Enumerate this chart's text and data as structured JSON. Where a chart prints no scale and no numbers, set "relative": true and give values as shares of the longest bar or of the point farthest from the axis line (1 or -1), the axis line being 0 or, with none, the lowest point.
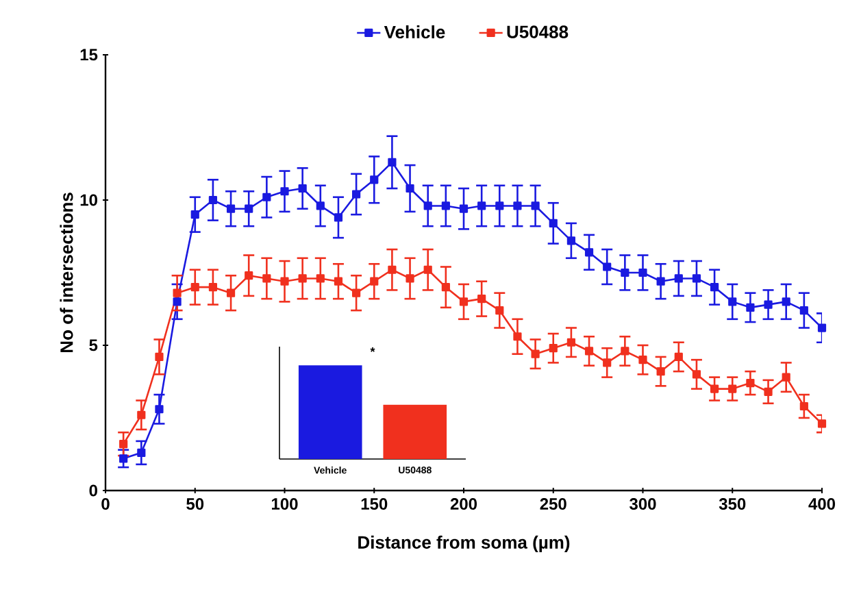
{
  "chart_data": [
    {
      "type": "line",
      "xlabel": "Distance from soma (µm)",
      "ylabel": "No of intersections",
      "x": [
        10,
        20,
        30,
        40,
        50,
        60,
        70,
        80,
        90,
        100,
        110,
        120,
        130,
        140,
        150,
        160,
        170,
        180,
        190,
        200,
        210,
        220,
        230,
        240,
        250,
        260,
        270,
        280,
        290,
        300,
        310,
        320,
        330,
        340,
        350,
        360,
        370,
        380,
        390,
        400
      ],
      "series": [
        {
          "name": "Vehicle",
          "color": "#1a1ae0",
          "values": [
            1.1,
            1.3,
            2.8,
            6.5,
            9.5,
            10.0,
            9.7,
            9.7,
            10.1,
            10.3,
            10.4,
            9.8,
            9.4,
            10.2,
            10.7,
            11.3,
            10.4,
            9.8,
            9.8,
            9.7,
            9.8,
            9.8,
            9.8,
            9.8,
            9.2,
            8.6,
            8.2,
            7.7,
            7.5,
            7.5,
            7.2,
            7.3,
            7.3,
            7.0,
            6.5,
            6.3,
            6.4,
            6.5,
            6.2,
            5.6
          ],
          "errors": [
            0.3,
            0.4,
            0.5,
            0.6,
            0.6,
            0.7,
            0.6,
            0.6,
            0.7,
            0.7,
            0.7,
            0.7,
            0.7,
            0.7,
            0.8,
            0.9,
            0.8,
            0.7,
            0.7,
            0.7,
            0.7,
            0.7,
            0.7,
            0.7,
            0.7,
            0.6,
            0.6,
            0.6,
            0.6,
            0.6,
            0.6,
            0.6,
            0.6,
            0.6,
            0.6,
            0.5,
            0.5,
            0.6,
            0.6,
            0.5
          ]
        },
        {
          "name": "U50488",
          "color": "#f0301e",
          "values": [
            1.6,
            2.6,
            4.6,
            6.8,
            7.0,
            7.0,
            6.8,
            7.4,
            7.3,
            7.2,
            7.3,
            7.3,
            7.2,
            6.8,
            7.2,
            7.6,
            7.3,
            7.6,
            7.0,
            6.5,
            6.6,
            6.2,
            5.3,
            4.7,
            4.9,
            5.1,
            4.8,
            4.4,
            4.8,
            4.5,
            4.1,
            4.6,
            4.0,
            3.5,
            3.5,
            3.7,
            3.4,
            3.9,
            2.9,
            2.3
          ],
          "errors": [
            0.4,
            0.5,
            0.6,
            0.6,
            0.6,
            0.6,
            0.6,
            0.7,
            0.7,
            0.7,
            0.7,
            0.7,
            0.6,
            0.6,
            0.6,
            0.7,
            0.7,
            0.7,
            0.7,
            0.6,
            0.6,
            0.6,
            0.6,
            0.5,
            0.5,
            0.5,
            0.5,
            0.5,
            0.5,
            0.5,
            0.5,
            0.5,
            0.5,
            0.4,
            0.4,
            0.4,
            0.4,
            0.5,
            0.4,
            0.3
          ]
        }
      ],
      "xlim": [
        0,
        400
      ],
      "xticks": [
        0,
        50,
        100,
        150,
        200,
        250,
        300,
        350,
        400
      ],
      "ylim": [
        0,
        15
      ],
      "yticks": [
        0,
        5,
        10,
        15
      ],
      "legend": "top",
      "marker": "square",
      "line_style": "solid"
    },
    {
      "type": "bar",
      "categories": [
        "Vehicle",
        "U50488"
      ],
      "values": [
        1,
        0.58
      ],
      "colors": [
        "#1a1ae0",
        "#f0301e"
      ],
      "relative": true,
      "annotations": [
        "*"
      ]
    }
  ]
}
